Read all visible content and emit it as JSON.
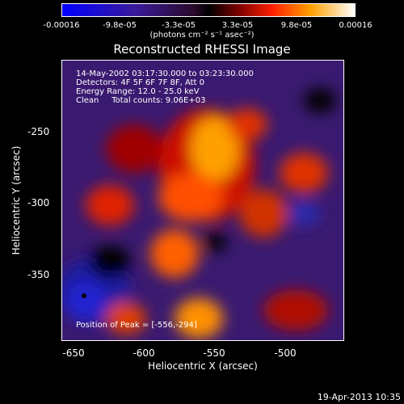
{
  "colorbar": {
    "labels": [
      "-0.00016",
      "-9.8e-05",
      "-3.3e-05",
      "3.3e-05",
      "9.8e-05",
      "0.00016"
    ],
    "unit": "(photons cm⁻² s⁻¹ asec⁻²)"
  },
  "title": "Reconstructed RHESSI Image",
  "info": {
    "line1": "14-May-2002 03:17:30.000 to 03:23:30.000",
    "line2": "Detectors: 4F 5F 6F 7F 8F, Att 0",
    "line3": "Energy Range: 12.0 - 25.0 keV",
    "line4": "Clean     Total counts: 9.06E+03"
  },
  "peak_text": "Position of Peak = [-556,-294]",
  "axes": {
    "xlabel": "Heliocentric X (arcsec)",
    "ylabel": "Heliocentric Y (arcsec)",
    "xticks": [
      "-650",
      "-600",
      "-550",
      "-500"
    ],
    "yticks": [
      "-250",
      "-300",
      "-350"
    ]
  },
  "footer_date": "19-Apr-2013 10:35",
  "colors": {
    "frame": "#ffffff",
    "background": "#000000"
  }
}
